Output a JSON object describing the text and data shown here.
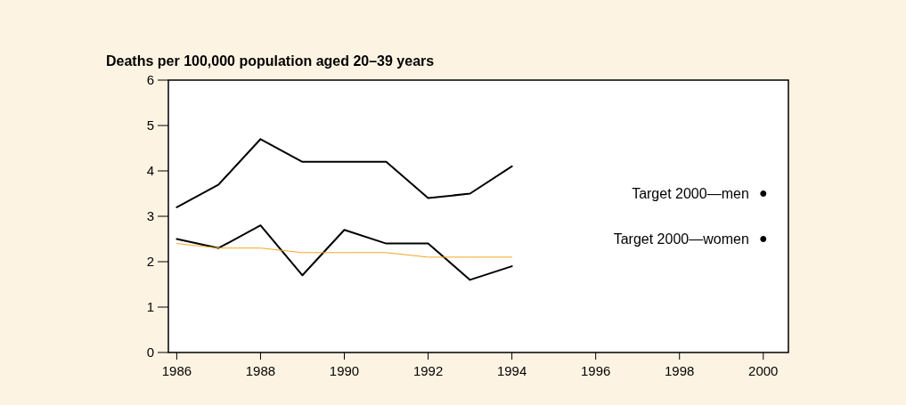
{
  "chart_data": {
    "type": "line",
    "title": "Deaths per 100,000 population aged 20–39 years",
    "x": [
      1986,
      1987,
      1988,
      1989,
      1990,
      1991,
      1992,
      1993,
      1994
    ],
    "series": [
      {
        "color": "#000000",
        "values": [
          3.2,
          3.7,
          4.7,
          4.2,
          4.2,
          4.2,
          3.4,
          3.5,
          4.1
        ]
      },
      {
        "color": "#000000",
        "values": [
          2.5,
          2.3,
          2.8,
          1.7,
          2.7,
          2.4,
          2.4,
          1.6,
          1.9
        ]
      },
      {
        "color": "#f5a623",
        "values": [
          2.4,
          2.3,
          2.3,
          2.2,
          2.2,
          2.2,
          2.1,
          2.1,
          2.1
        ]
      },
      {
        "type": "scatter",
        "name": "Target 2000—men",
        "color": "#000000",
        "marker": "circle",
        "x": [
          2000
        ],
        "values": [
          3.5
        ]
      },
      {
        "type": "scatter",
        "name": "Target 2000—women",
        "color": "#000000",
        "marker": "circle",
        "x": [
          2000
        ],
        "values": [
          2.5
        ]
      }
    ],
    "xlim": [
      1985.8,
      2000.6
    ],
    "xticks": [
      1986,
      1988,
      1990,
      1992,
      1994,
      1996,
      1998,
      2000
    ],
    "ylim": [
      0,
      6
    ],
    "yticks": [
      0,
      1,
      2,
      3,
      4,
      5,
      6
    ],
    "grid": false,
    "line_style": "solid"
  }
}
